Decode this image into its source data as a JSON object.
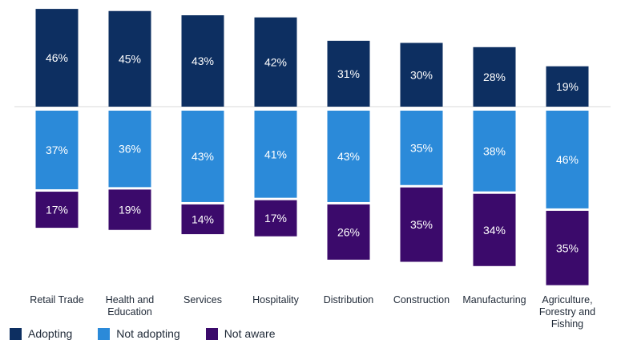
{
  "chart_data": {
    "type": "bar",
    "subtype": "diverging-stacked",
    "title": "",
    "xlabel": "",
    "ylabel": "",
    "categories": [
      [
        "Retail Trade"
      ],
      [
        "Health and",
        "Education"
      ],
      [
        "Services"
      ],
      [
        "Hospitality"
      ],
      [
        "Distribution"
      ],
      [
        "Construction"
      ],
      [
        "Manufacturing"
      ],
      [
        "Agriculture,",
        "Forestry and",
        "Fishing"
      ]
    ],
    "series": [
      {
        "name": "Adopting",
        "color": "#0d2f61",
        "values": [
          46,
          45,
          43,
          42,
          31,
          30,
          28,
          19
        ],
        "labels": [
          "46%",
          "45%",
          "43%",
          "42%",
          "31%",
          "30%",
          "28%",
          "19%"
        ]
      },
      {
        "name": "Not adopting",
        "color": "#2b8ad9",
        "values": [
          37,
          36,
          43,
          41,
          43,
          35,
          38,
          46
        ],
        "labels": [
          "37%",
          "36%",
          "43%",
          "41%",
          "43%",
          "35%",
          "38%",
          "46%"
        ]
      },
      {
        "name": "Not aware",
        "color": "#3b0a6b",
        "values": [
          17,
          19,
          14,
          17,
          26,
          35,
          34,
          35
        ],
        "labels": [
          "17%",
          "19%",
          "14%",
          "17%",
          "26%",
          "35%",
          "34%",
          "35%"
        ]
      }
    ],
    "legend_position": "bottom-left",
    "grid": false
  }
}
